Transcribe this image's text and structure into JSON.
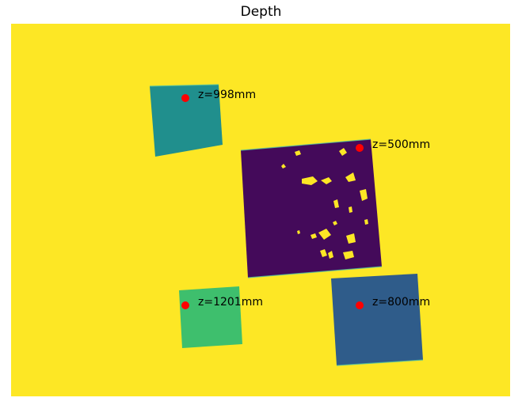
{
  "title": "Depth",
  "colors": {
    "background": "#fde725",
    "depth_500": "#440a5a",
    "depth_800": "#2f5c8a",
    "depth_998": "#208f8d",
    "depth_1201": "#3ebf6d",
    "marker": "#ff0000",
    "speckle": "#fde725"
  },
  "objects": [
    {
      "id": "obj-998",
      "label": "z=998mm",
      "depth_mm": 998
    },
    {
      "id": "obj-500",
      "label": "z=500mm",
      "depth_mm": 500
    },
    {
      "id": "obj-1201",
      "label": "z=1201mm",
      "depth_mm": 1201
    },
    {
      "id": "obj-800",
      "label": "z=800mm",
      "depth_mm": 800
    }
  ]
}
